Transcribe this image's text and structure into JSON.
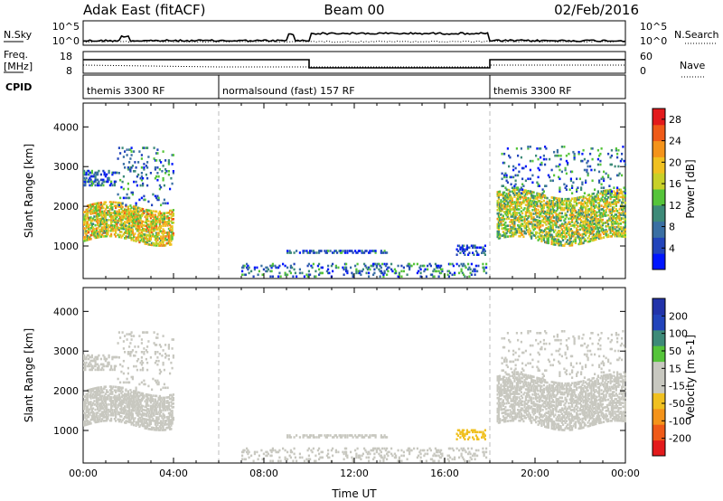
{
  "header": {
    "station": "Adak East (fitACF)",
    "beam": "Beam 00",
    "date": "02/Feb/2016"
  },
  "top_panels": {
    "nsky_label": "N.Sky",
    "nsearch_label": "N.Search",
    "freq_label_line1": "Freq.",
    "freq_label_line2": "[MHz]",
    "nave_label": "Nave",
    "cpid_label": "CPID",
    "nsky_ticks": [
      "10^5",
      "10^0"
    ],
    "nsearch_ticks": [
      "10^5",
      "10^0"
    ],
    "freq_ticks": [
      "18",
      "8"
    ],
    "nave_ticks": [
      "60",
      "0"
    ]
  },
  "cpid_segments": [
    {
      "start": 0,
      "end": 6,
      "label": "themis 3300 RF"
    },
    {
      "start": 6,
      "end": 18,
      "label": "normalsound (fast) 157 RF"
    },
    {
      "start": 18,
      "end": 24,
      "label": "themis 3300 RF"
    }
  ],
  "chart_data": [
    {
      "type": "heatmap",
      "title": "",
      "xlabel": "Time UT",
      "ylabel": "Slant Range [km]",
      "xlim": [
        0,
        24
      ],
      "ylim": [
        180,
        4600
      ],
      "x_ticks": [
        "00:00",
        "04:00",
        "08:00",
        "12:00",
        "16:00",
        "20:00",
        "00:00"
      ],
      "y_ticks": [
        "1000",
        "2000",
        "3000",
        "4000"
      ],
      "y_tick_values": [
        1000,
        2000,
        3000,
        4000
      ],
      "colorbar": {
        "label": "Power [dB]",
        "ticks": [
          "4",
          "8",
          "12",
          "16",
          "20",
          "24",
          "28"
        ],
        "range": [
          0,
          30
        ],
        "colors": [
          "#0015ff",
          "#2244bb",
          "#3a6fa3",
          "#3d8a78",
          "#55c43a",
          "#c8d028",
          "#f0c020",
          "#f4931a",
          "#ef5a18",
          "#e31a1c"
        ]
      },
      "regions": [
        {
          "t0": 0.0,
          "t1": 4.0,
          "r0": 1100,
          "r1": 2000,
          "value": 18,
          "density": 0.55
        },
        {
          "t0": 0.0,
          "t1": 1.5,
          "r0": 2500,
          "r1": 2900,
          "value": 6,
          "density": 0.3
        },
        {
          "t0": 1.5,
          "t1": 4.0,
          "r0": 2000,
          "r1": 3500,
          "value": 8,
          "density": 0.08
        },
        {
          "t0": 18.3,
          "t1": 24.0,
          "r0": 1100,
          "r1": 2300,
          "value": 16,
          "density": 0.5
        },
        {
          "t0": 18.5,
          "t1": 24.0,
          "r0": 2300,
          "r1": 3500,
          "value": 8,
          "density": 0.07
        },
        {
          "t0": 9.0,
          "t1": 13.5,
          "r0": 800,
          "r1": 900,
          "value": 6,
          "density": 0.45
        },
        {
          "t0": 16.5,
          "t1": 17.8,
          "r0": 750,
          "r1": 1000,
          "value": 5,
          "density": 0.35
        },
        {
          "t0": 7.0,
          "t1": 18.0,
          "r0": 200,
          "r1": 550,
          "value": 8,
          "density": 0.15
        }
      ]
    },
    {
      "type": "heatmap",
      "title": "",
      "xlabel": "Time UT",
      "ylabel": "Slant Range [km]",
      "xlim": [
        0,
        24
      ],
      "ylim": [
        180,
        4600
      ],
      "x_ticks": [
        "00:00",
        "04:00",
        "08:00",
        "12:00",
        "16:00",
        "20:00",
        "00:00"
      ],
      "y_ticks": [
        "1000",
        "2000",
        "3000",
        "4000"
      ],
      "y_tick_values": [
        1000,
        2000,
        3000,
        4000
      ],
      "colorbar": {
        "label": "Velocity [m s-1]",
        "ticks": [
          "200",
          "100",
          "50",
          "15",
          "-15",
          "-50",
          "-100",
          "-200"
        ],
        "range": [
          -250,
          250
        ],
        "colors": [
          "#e31a1c",
          "#ef5a18",
          "#f4931a",
          "#f0c020",
          "#c8c8c0",
          "#c8c8c0",
          "#55c43a",
          "#3d8a78",
          "#2244bb",
          "#2233aa"
        ]
      },
      "regions": [
        {
          "t0": 0.0,
          "t1": 4.0,
          "r0": 1100,
          "r1": 2000,
          "value": 0,
          "density": 0.55
        },
        {
          "t0": 0.0,
          "t1": 1.5,
          "r0": 2500,
          "r1": 2900,
          "value": 0,
          "density": 0.3
        },
        {
          "t0": 1.5,
          "t1": 4.0,
          "r0": 2000,
          "r1": 3500,
          "value": 10,
          "density": 0.08
        },
        {
          "t0": 18.3,
          "t1": 24.0,
          "r0": 1100,
          "r1": 2300,
          "value": 0,
          "density": 0.5
        },
        {
          "t0": 18.5,
          "t1": 24.0,
          "r0": 2300,
          "r1": 3500,
          "value": 30,
          "density": 0.07
        },
        {
          "t0": 9.0,
          "t1": 13.5,
          "r0": 800,
          "r1": 900,
          "value": 30,
          "density": 0.45
        },
        {
          "t0": 16.5,
          "t1": 17.8,
          "r0": 750,
          "r1": 1000,
          "value": -60,
          "density": 0.35
        },
        {
          "t0": 7.0,
          "t1": 18.0,
          "r0": 200,
          "r1": 550,
          "value": 25,
          "density": 0.15
        }
      ]
    }
  ]
}
